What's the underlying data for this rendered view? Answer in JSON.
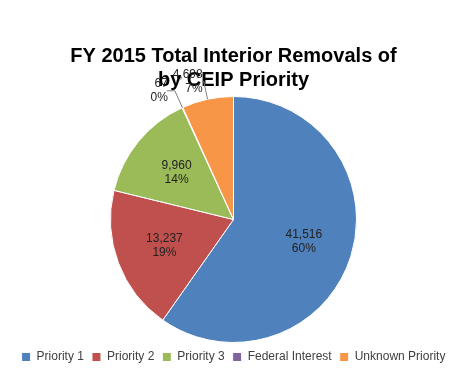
{
  "chart_data": {
    "type": "pie",
    "title": "FY 2015 Total Interior Removals of\nby CEIP Priority",
    "categories": [
      "Priority 1",
      "Priority 2",
      "Priority 3",
      "Federal Interest",
      "Unknown Priority"
    ],
    "values": [
      41516,
      13237,
      9960,
      67,
      4698
    ],
    "value_labels": [
      "41,516",
      "13,237",
      "9,960",
      "67",
      "4,698"
    ],
    "percentages": [
      60,
      19,
      14,
      0,
      7
    ],
    "percentage_labels": [
      "60%",
      "19%",
      "14%",
      "0%",
      "7%"
    ],
    "colors": [
      "#4f81bd",
      "#c0504d",
      "#9bbb59",
      "#8064a2",
      "#f79646"
    ],
    "legend": "bottom",
    "data_labels": true
  }
}
